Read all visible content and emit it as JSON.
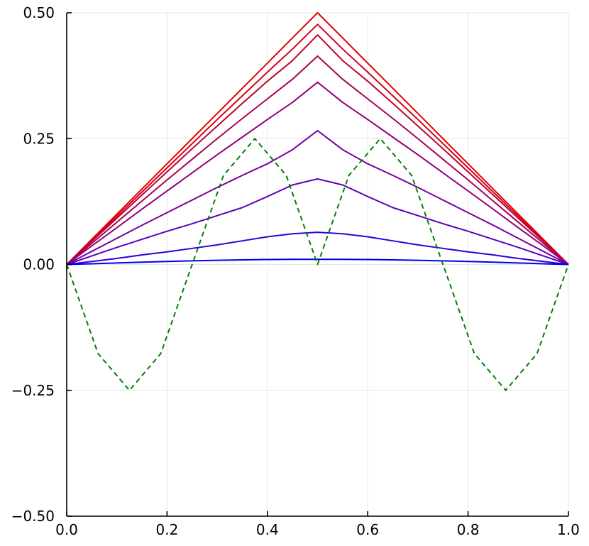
{
  "chart_data": {
    "type": "line",
    "title": "",
    "xlabel": "",
    "ylabel": "",
    "xlim": [
      0.0,
      1.0
    ],
    "ylim": [
      -0.5,
      0.5
    ],
    "grid": true,
    "legend": "none",
    "x_ticks": [
      {
        "value": 0.0,
        "label": "0.0"
      },
      {
        "value": 0.2,
        "label": "0.2"
      },
      {
        "value": 0.4,
        "label": "0.4"
      },
      {
        "value": 0.6,
        "label": "0.6"
      },
      {
        "value": 0.8,
        "label": "0.8"
      },
      {
        "value": 1.0,
        "label": "1.0"
      }
    ],
    "y_ticks": [
      {
        "value": 0.5,
        "label": "0.50"
      },
      {
        "value": 0.25,
        "label": "0.25"
      },
      {
        "value": 0.0,
        "label": "0.00"
      },
      {
        "value": -0.25,
        "label": "−0.25"
      },
      {
        "value": -0.5,
        "label": "−0.50"
      }
    ],
    "series": [
      {
        "color": "#e60000",
        "dash": "solid",
        "x": [
          0,
          0.05,
          0.1,
          0.15,
          0.2,
          0.25,
          0.3,
          0.35,
          0.4,
          0.45,
          0.5,
          0.55,
          0.6,
          0.65,
          0.7,
          0.75,
          0.8,
          0.85,
          0.9,
          0.95,
          1.0
        ],
        "y": [
          0,
          0.05,
          0.1,
          0.15,
          0.2,
          0.25,
          0.3,
          0.35,
          0.4,
          0.45,
          0.5,
          0.45,
          0.4,
          0.35,
          0.3,
          0.25,
          0.2,
          0.15,
          0.1,
          0.05,
          0
        ]
      },
      {
        "color": "#d30018",
        "dash": "solid",
        "x": [
          0,
          0.05,
          0.1,
          0.15,
          0.2,
          0.25,
          0.3,
          0.35,
          0.4,
          0.45,
          0.5,
          0.55,
          0.6,
          0.65,
          0.7,
          0.75,
          0.8,
          0.85,
          0.9,
          0.95,
          1.0
        ],
        "y": [
          0,
          0.048,
          0.096,
          0.144,
          0.192,
          0.24,
          0.288,
          0.335,
          0.382,
          0.428,
          0.477,
          0.428,
          0.382,
          0.335,
          0.288,
          0.24,
          0.192,
          0.144,
          0.096,
          0.048,
          0
        ]
      },
      {
        "color": "#c00030",
        "dash": "solid",
        "x": [
          0,
          0.05,
          0.1,
          0.15,
          0.2,
          0.25,
          0.3,
          0.35,
          0.4,
          0.45,
          0.5,
          0.55,
          0.6,
          0.65,
          0.7,
          0.75,
          0.8,
          0.85,
          0.9,
          0.95,
          1.0
        ],
        "y": [
          0,
          0.046,
          0.092,
          0.138,
          0.184,
          0.23,
          0.275,
          0.32,
          0.364,
          0.405,
          0.456,
          0.405,
          0.364,
          0.32,
          0.275,
          0.23,
          0.184,
          0.138,
          0.092,
          0.046,
          0
        ]
      },
      {
        "color": "#aa0052",
        "dash": "solid",
        "x": [
          0,
          0.05,
          0.1,
          0.15,
          0.2,
          0.25,
          0.3,
          0.35,
          0.4,
          0.45,
          0.5,
          0.55,
          0.6,
          0.65,
          0.7,
          0.75,
          0.8,
          0.85,
          0.9,
          0.95,
          1.0
        ],
        "y": [
          0,
          0.042,
          0.084,
          0.126,
          0.168,
          0.209,
          0.25,
          0.29,
          0.329,
          0.368,
          0.414,
          0.368,
          0.329,
          0.29,
          0.25,
          0.209,
          0.168,
          0.126,
          0.084,
          0.042,
          0
        ]
      },
      {
        "color": "#930078",
        "dash": "solid",
        "x": [
          0,
          0.05,
          0.1,
          0.15,
          0.2,
          0.25,
          0.3,
          0.35,
          0.4,
          0.45,
          0.5,
          0.55,
          0.6,
          0.65,
          0.7,
          0.75,
          0.8,
          0.85,
          0.9,
          0.95,
          1.0
        ],
        "y": [
          0,
          0.037,
          0.073,
          0.11,
          0.146,
          0.182,
          0.218,
          0.253,
          0.288,
          0.322,
          0.362,
          0.322,
          0.288,
          0.253,
          0.218,
          0.182,
          0.146,
          0.11,
          0.073,
          0.037,
          0
        ]
      },
      {
        "color": "#7800a0",
        "dash": "solid",
        "x": [
          0,
          0.05,
          0.1,
          0.15,
          0.2,
          0.25,
          0.3,
          0.35,
          0.4,
          0.45,
          0.5,
          0.55,
          0.6,
          0.65,
          0.7,
          0.75,
          0.8,
          0.85,
          0.9,
          0.95,
          1.0
        ],
        "y": [
          0,
          0.026,
          0.052,
          0.078,
          0.103,
          0.128,
          0.153,
          0.177,
          0.2,
          0.228,
          0.266,
          0.228,
          0.2,
          0.177,
          0.153,
          0.128,
          0.103,
          0.078,
          0.052,
          0.026,
          0
        ]
      },
      {
        "color": "#5a00c0",
        "dash": "solid",
        "x": [
          0,
          0.05,
          0.1,
          0.15,
          0.2,
          0.25,
          0.3,
          0.35,
          0.4,
          0.45,
          0.5,
          0.55,
          0.6,
          0.65,
          0.7,
          0.75,
          0.8,
          0.85,
          0.9,
          0.95,
          1.0
        ],
        "y": [
          0,
          0.017,
          0.034,
          0.05,
          0.066,
          0.081,
          0.097,
          0.113,
          0.135,
          0.158,
          0.17,
          0.158,
          0.135,
          0.113,
          0.097,
          0.081,
          0.066,
          0.05,
          0.034,
          0.017,
          0
        ]
      },
      {
        "color": "#3000d8",
        "dash": "solid",
        "x": [
          0,
          0.05,
          0.1,
          0.15,
          0.2,
          0.25,
          0.3,
          0.35,
          0.4,
          0.45,
          0.5,
          0.55,
          0.6,
          0.65,
          0.7,
          0.75,
          0.8,
          0.85,
          0.9,
          0.95,
          1.0
        ],
        "y": [
          0,
          0.006,
          0.012,
          0.019,
          0.025,
          0.032,
          0.039,
          0.047,
          0.055,
          0.061,
          0.064,
          0.061,
          0.055,
          0.047,
          0.039,
          0.032,
          0.025,
          0.019,
          0.012,
          0.006,
          0
        ]
      },
      {
        "color": "#0000f0",
        "dash": "solid",
        "x": [
          0,
          0.05,
          0.1,
          0.15,
          0.2,
          0.25,
          0.3,
          0.35,
          0.4,
          0.45,
          0.5,
          0.55,
          0.6,
          0.65,
          0.7,
          0.75,
          0.8,
          0.85,
          0.9,
          0.95,
          1.0
        ],
        "y": [
          0,
          0.0015,
          0.003,
          0.0045,
          0.006,
          0.0072,
          0.0083,
          0.0092,
          0.0098,
          0.0102,
          0.0103,
          0.0102,
          0.0098,
          0.0092,
          0.0083,
          0.0072,
          0.006,
          0.0045,
          0.003,
          0.0015,
          0
        ]
      },
      {
        "color": "#008000",
        "dash": "dashed",
        "x": [
          0,
          0.0625,
          0.125,
          0.1875,
          0.25,
          0.3125,
          0.375,
          0.4375,
          0.5,
          0.5625,
          0.625,
          0.6875,
          0.75,
          0.8125,
          0.875,
          0.9375,
          1.0
        ],
        "y": [
          0,
          -0.177,
          -0.25,
          -0.177,
          0,
          0.177,
          0.25,
          0.177,
          0,
          0.177,
          0.25,
          0.177,
          0,
          -0.177,
          -0.25,
          -0.177,
          0
        ]
      }
    ]
  }
}
